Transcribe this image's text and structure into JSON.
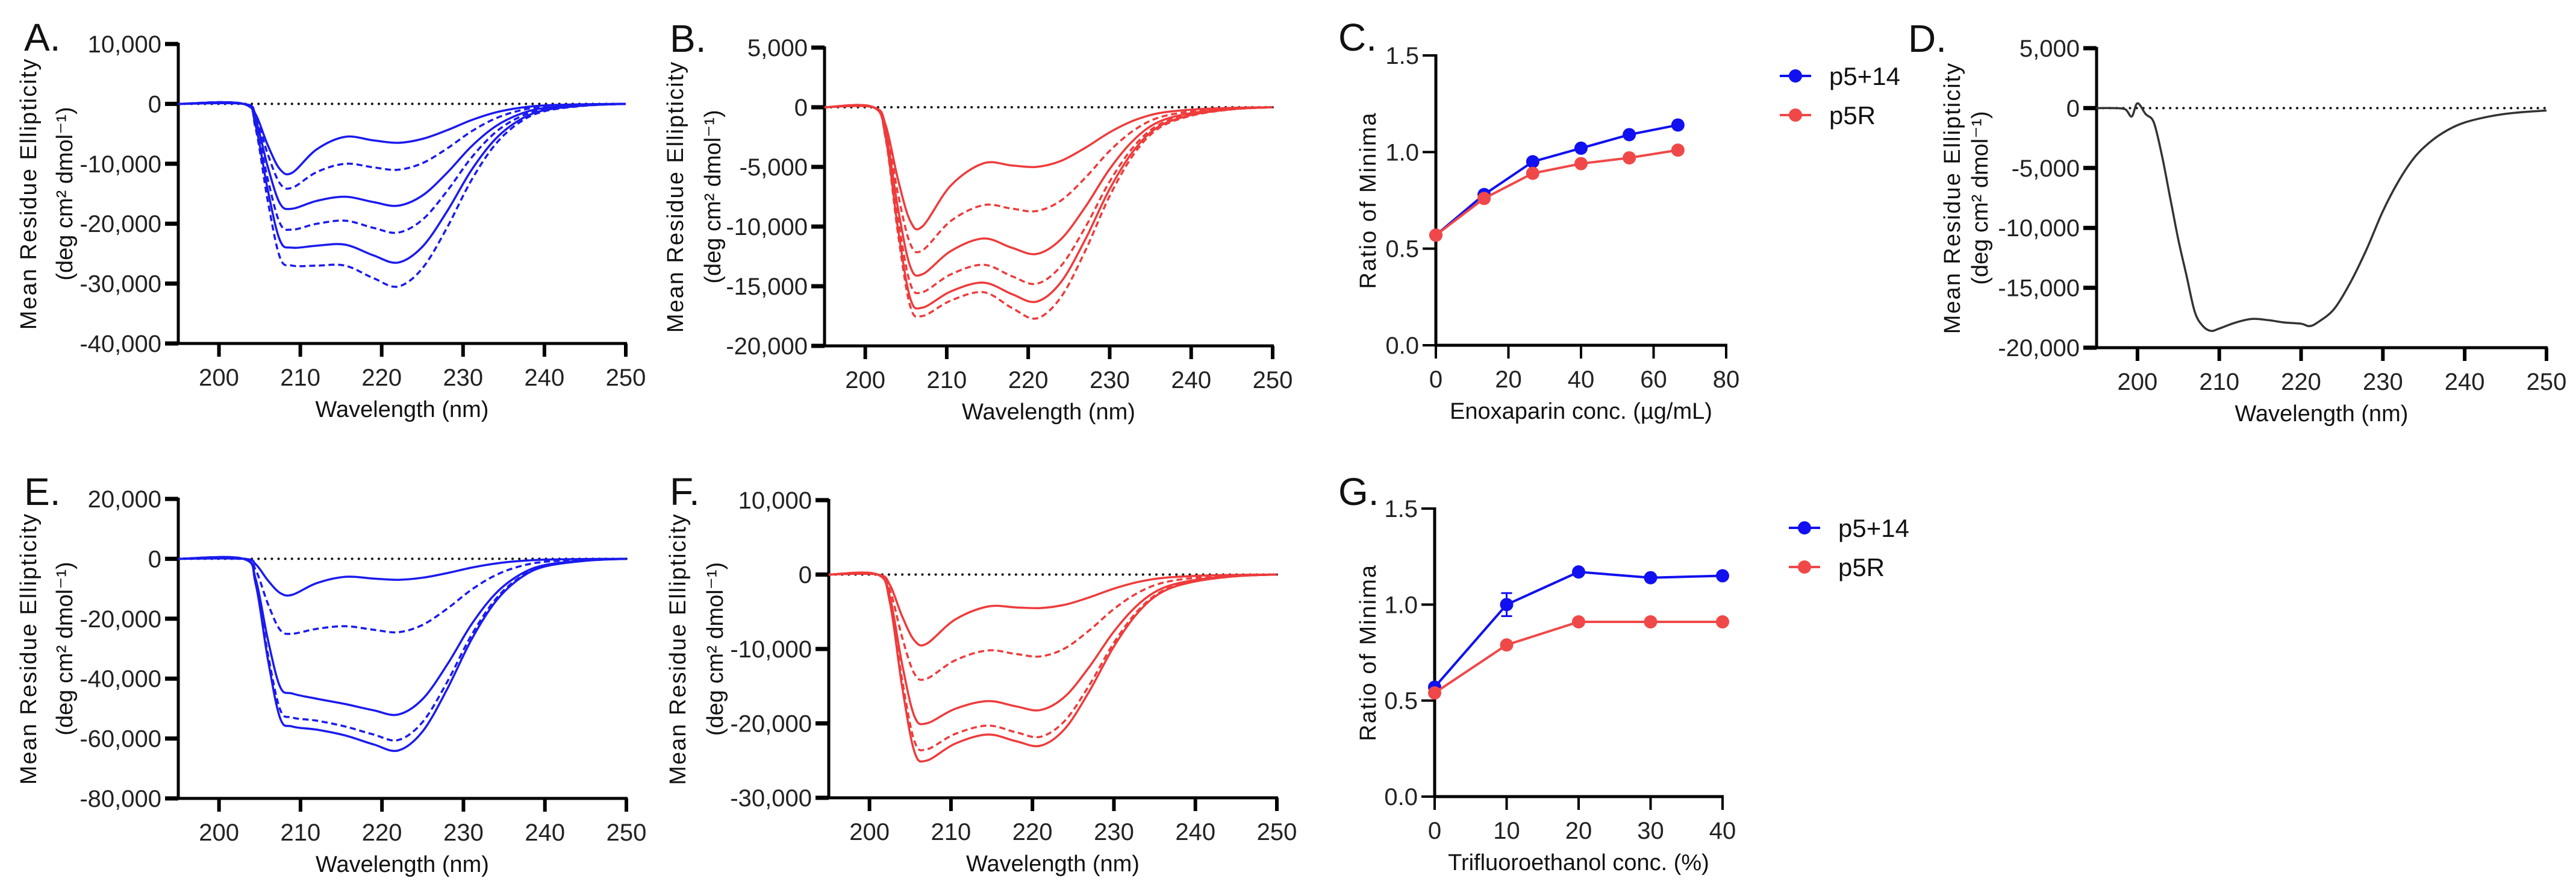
{
  "chart_data": [
    {
      "panel": "A.",
      "type": "line",
      "xlabel": "Wavelength (nm)",
      "ylabel": "Mean Residue Ellipticity",
      "ylabel_units": "(deg cm² dmol⁻¹)",
      "xlim": [
        195,
        250
      ],
      "ylim": [
        -40000,
        10000
      ],
      "xticks": [
        "200",
        "210",
        "220",
        "230",
        "240",
        "250"
      ],
      "yticks": [
        "10,000",
        "0",
        "-10,000",
        "-20,000",
        "-30,000",
        "-40,000"
      ],
      "zero_line": true,
      "color": "#1a1aee",
      "markers": false,
      "x": [
        195,
        203,
        204.5,
        206,
        207.5,
        209,
        212,
        215.5,
        219,
        222,
        225,
        228,
        231,
        234,
        237,
        240,
        245,
        250
      ],
      "series": [
        {
          "dashed": false,
          "values": [
            0,
            0,
            -1725,
            -6900,
            -10925,
            -11500,
            -7600,
            -5500,
            -6100,
            -6500,
            -5850,
            -4420,
            -2730,
            -1430,
            -650,
            -260,
            -65,
            0
          ]
        },
        {
          "dashed": true,
          "values": [
            0,
            0,
            -2100,
            -8400,
            -13300,
            -14000,
            -11400,
            -10000,
            -10600,
            -11000,
            -9900,
            -7480,
            -4620,
            -2420,
            -1100,
            -440,
            -110,
            0
          ]
        },
        {
          "dashed": false,
          "values": [
            0,
            0,
            -2625,
            -10500,
            -16625,
            -17500,
            -16200,
            -15500,
            -16400,
            -17000,
            -15300,
            -11560,
            -7140,
            -3740,
            -1700,
            -680,
            -170,
            0
          ]
        },
        {
          "dashed": true,
          "values": [
            0,
            0,
            -3150,
            -12600,
            -19950,
            -21000,
            -20025,
            -19500,
            -20700,
            -21500,
            -19350,
            -14620,
            -9030,
            -4730,
            -2150,
            -860,
            -215,
            0
          ]
        },
        {
          "dashed": false,
          "values": [
            0,
            0,
            -3600,
            -14400,
            -22800,
            -24000,
            -23675,
            -23500,
            -25300,
            -26500,
            -23850,
            -18020,
            -11130,
            -5830,
            -2650,
            -1060,
            -265,
            0
          ]
        },
        {
          "dashed": true,
          "values": [
            0,
            0,
            -4050,
            -16200,
            -25650,
            -27000,
            -27000,
            -27000,
            -29100,
            -30500,
            -27450,
            -20740,
            -12810,
            -6710,
            -3050,
            -1220,
            -305,
            0
          ]
        }
      ]
    },
    {
      "panel": "B.",
      "type": "line",
      "xlabel": "Wavelength (nm)",
      "ylabel": "Mean Residue Ellipticity",
      "ylabel_units": "(deg cm² dmol⁻¹)",
      "xlim": [
        195,
        250
      ],
      "ylim": [
        -20000,
        5000
      ],
      "xticks": [
        "200",
        "210",
        "220",
        "230",
        "240",
        "250"
      ],
      "yticks": [
        "5,000",
        "0",
        "-5,000",
        "-10,000",
        "-15,000",
        "-20,000"
      ],
      "zero_line": true,
      "color": "#ee3b3b",
      "markers": false,
      "x": [
        195,
        201,
        202.5,
        204,
        205.5,
        207,
        210.5,
        214.5,
        218,
        221,
        224,
        227,
        230,
        233,
        236,
        240,
        245,
        250
      ],
      "series": [
        {
          "dashed": false,
          "values": [
            0,
            0,
            -1500,
            -6000,
            -9500,
            -10000,
            -6555,
            -4700,
            -4880,
            -5000,
            -4500,
            -3400,
            -2100,
            -1100,
            -500,
            -200,
            -50,
            0
          ]
        },
        {
          "dashed": true,
          "values": [
            0,
            0,
            -1800,
            -7200,
            -11400,
            -12000,
            -9530,
            -8200,
            -8500,
            -8700,
            -7830,
            -5916,
            -3654,
            -1914,
            -870,
            -348,
            -87,
            0
          ]
        },
        {
          "dashed": false,
          "values": [
            0,
            0,
            -2100,
            -8400,
            -13300,
            -14000,
            -12050,
            -11000,
            -11780,
            -12300,
            -11070,
            -8364,
            -5166,
            -2706,
            -1230,
            -492,
            -123,
            0
          ]
        },
        {
          "dashed": true,
          "values": [
            0,
            0,
            -2325,
            -9300,
            -14725,
            -15500,
            -14005,
            -13200,
            -14160,
            -14800,
            -13320,
            -10064,
            -6216,
            -3256,
            -1480,
            -592,
            -148,
            0
          ]
        },
        {
          "dashed": false,
          "values": [
            0,
            0,
            -2520,
            -10080,
            -15960,
            -16800,
            -15435,
            -14700,
            -15660,
            -16300,
            -14670,
            -11084,
            -6846,
            -3586,
            -1630,
            -652,
            -163,
            0
          ]
        },
        {
          "dashed": true,
          "values": [
            0,
            0,
            -2625,
            -10500,
            -16625,
            -17500,
            -16200,
            -15500,
            -16820,
            -17700,
            -15930,
            -12036,
            -7434,
            -3894,
            -1770,
            -708,
            -177,
            0
          ]
        }
      ]
    },
    {
      "panel": "C.",
      "type": "line",
      "xlabel": "Enoxaparin conc. (µg/mL)",
      "ylabel": "Ratio of Minima",
      "ylabel_units": "",
      "xlim": [
        0,
        80
      ],
      "ylim": [
        0,
        1.5
      ],
      "xticks": [
        "0",
        "20",
        "40",
        "60",
        "80"
      ],
      "yticks": [
        "0.0",
        "0.5",
        "1.0",
        "1.5"
      ],
      "zero_line": false,
      "markers": true,
      "legend": [
        {
          "label": "p5+14",
          "color": "#1010f0"
        },
        {
          "label": "p5R",
          "color": "#f04848"
        }
      ],
      "x": [
        0,
        13.3,
        26.7,
        40,
        53.3,
        66.7
      ],
      "series": [
        {
          "name": "p5+14",
          "color": "#1010f0",
          "values": [
            0.57,
            0.78,
            0.95,
            1.02,
            1.09,
            1.14
          ],
          "errors": [
            0,
            0,
            0,
            0,
            0,
            0
          ]
        },
        {
          "name": "p5R",
          "color": "#f04848",
          "values": [
            0.57,
            0.76,
            0.89,
            0.94,
            0.97,
            1.01
          ],
          "errors": [
            0,
            0,
            0,
            0,
            0,
            0
          ]
        }
      ]
    },
    {
      "panel": "D.",
      "type": "line",
      "xlabel": "Wavelength (nm)",
      "ylabel": "Mean Residue Ellipticity",
      "ylabel_units": "(deg cm² dmol⁻¹)",
      "xlim": [
        195,
        250
      ],
      "ylim": [
        -20000,
        5000
      ],
      "xticks": [
        "200",
        "210",
        "220",
        "230",
        "240",
        "250"
      ],
      "yticks": [
        "5,000",
        "0",
        "-5,000",
        "-10,000",
        "-15,000",
        "-20,000"
      ],
      "zero_line": true,
      "color": "#333333",
      "markers": false,
      "x": [
        195,
        197,
        198.5,
        199.3,
        200,
        201,
        202,
        203,
        204,
        205,
        206,
        207,
        208,
        209,
        210,
        212,
        214,
        216,
        218,
        220,
        221,
        222,
        224,
        226,
        228,
        230,
        232,
        234,
        236,
        238,
        240,
        243,
        246,
        250
      ],
      "series": [
        {
          "dashed": false,
          "values": [
            0,
            0,
            -100,
            -700,
            400,
            -500,
            -1200,
            -4000,
            -7500,
            -11000,
            -14000,
            -17000,
            -18200,
            -18600,
            -18400,
            -17900,
            -17600,
            -17700,
            -17900,
            -18000,
            -18200,
            -17900,
            -16800,
            -14600,
            -11800,
            -8600,
            -6000,
            -4000,
            -2700,
            -1800,
            -1200,
            -700,
            -400,
            -200
          ]
        }
      ]
    },
    {
      "panel": "E.",
      "type": "line",
      "xlabel": "Wavelength (nm)",
      "ylabel": "Mean Residue Ellipticity",
      "ylabel_units": "(deg cm² dmol⁻¹)",
      "xlim": [
        195,
        250
      ],
      "ylim": [
        -80000,
        20000
      ],
      "xticks": [
        "200",
        "210",
        "220",
        "230",
        "240",
        "250"
      ],
      "yticks": [
        "20,000",
        "0",
        "-20,000",
        "-40,000",
        "-60,000",
        "-80,000"
      ],
      "zero_line": true,
      "color": "#1a1aee",
      "markers": false,
      "x": [
        195,
        203,
        204.5,
        206,
        207.5,
        209,
        212,
        215.5,
        219,
        222,
        225,
        228,
        231,
        234,
        237,
        240,
        245,
        250
      ],
      "series": [
        {
          "dashed": false,
          "values": [
            0,
            0,
            -1800,
            -7200,
            -11400,
            -12000,
            -8100,
            -6000,
            -6600,
            -7000,
            -6300,
            -4760,
            -2940,
            -1540,
            -700,
            -280,
            -70,
            0
          ]
        },
        {
          "dashed": true,
          "values": [
            0,
            0,
            -3750,
            -15000,
            -23750,
            -25000,
            -23375,
            -22500,
            -23700,
            -24500,
            -22050,
            -16660,
            -10290,
            -5390,
            -2450,
            -980,
            -245,
            0
          ]
        },
        {
          "dashed": false,
          "values": [
            0,
            0,
            -6750,
            -27000,
            -42750,
            -45000,
            -46725,
            -48500,
            -50600,
            -52000,
            -46800,
            -35360,
            -21840,
            -11440,
            -5200,
            -2080,
            -520,
            0
          ]
        },
        {
          "dashed": true,
          "values": [
            0,
            0,
            -7950,
            -31800,
            -50350,
            -53000,
            -54050,
            -56000,
            -58700,
            -60500,
            -54450,
            -41140,
            -25410,
            -13310,
            -6050,
            -2420,
            -605,
            0
          ]
        },
        {
          "dashed": false,
          "values": [
            0,
            0,
            -8400,
            -33600,
            -53200,
            -56000,
            -57050,
            -59000,
            -62000,
            -64000,
            -57600,
            -43520,
            -26880,
            -14080,
            -6400,
            -2560,
            -640,
            0
          ]
        }
      ]
    },
    {
      "panel": "F.",
      "type": "line",
      "xlabel": "Wavelength (nm)",
      "ylabel": "Mean Residue Ellipticity",
      "ylabel_units": "(deg cm² dmol⁻¹)",
      "xlim": [
        195,
        250
      ],
      "ylim": [
        -30000,
        10000
      ],
      "xticks": [
        "200",
        "210",
        "220",
        "230",
        "240",
        "250"
      ],
      "yticks": [
        "10,000",
        "0",
        "-10,000",
        "-20,000",
        "-30,000"
      ],
      "zero_line": true,
      "color": "#ee3b3b",
      "markers": false,
      "x": [
        195,
        201,
        202.5,
        204,
        205.5,
        207,
        210.5,
        214.5,
        218,
        221,
        224,
        227,
        230,
        233,
        236,
        240,
        245,
        250
      ],
      "series": [
        {
          "dashed": false,
          "values": [
            0,
            0,
            -1395,
            -5580,
            -8835,
            -9300,
            -6050,
            -4300,
            -4420,
            -4500,
            -4050,
            -3060,
            -1890,
            -990,
            -450,
            -180,
            -45,
            0
          ]
        },
        {
          "dashed": true,
          "values": [
            0,
            0,
            -2100,
            -8400,
            -13300,
            -14000,
            -11530,
            -10200,
            -10680,
            -11000,
            -9900,
            -7480,
            -4620,
            -2420,
            -1100,
            -440,
            -110,
            0
          ]
        },
        {
          "dashed": false,
          "values": [
            0,
            0,
            -3000,
            -12000,
            -19000,
            -20000,
            -18050,
            -17000,
            -17720,
            -18200,
            -16380,
            -12376,
            -7644,
            -4004,
            -1820,
            -728,
            -182,
            0
          ]
        },
        {
          "dashed": true,
          "values": [
            0,
            0,
            -3525,
            -14100,
            -22325,
            -23500,
            -21420,
            -20300,
            -21200,
            -21800,
            -19620,
            -14824,
            -9156,
            -4796,
            -2180,
            -872,
            -218,
            0
          ]
        },
        {
          "dashed": false,
          "values": [
            0,
            0,
            -3750,
            -15000,
            -23750,
            -25000,
            -22725,
            -21500,
            -22400,
            -23000,
            -20700,
            -15640,
            -9660,
            -5060,
            -2300,
            -920,
            -230,
            0
          ]
        }
      ]
    },
    {
      "panel": "G.",
      "type": "line",
      "xlabel": "Trifluoroethanol conc. (%)",
      "ylabel": "Ratio of Minima",
      "ylabel_units": "",
      "xlim": [
        0,
        40
      ],
      "ylim": [
        0,
        1.5
      ],
      "xticks": [
        "0",
        "10",
        "20",
        "30",
        "40"
      ],
      "yticks": [
        "0.0",
        "0.5",
        "1.0",
        "1.5"
      ],
      "zero_line": false,
      "markers": true,
      "legend": [
        {
          "label": "p5+14",
          "color": "#1010f0"
        },
        {
          "label": "p5R",
          "color": "#f04848"
        }
      ],
      "x": [
        0,
        10,
        20,
        30,
        40
      ],
      "series": [
        {
          "name": "p5+14",
          "color": "#1010f0",
          "values": [
            0.57,
            1.0,
            1.17,
            1.14,
            1.15
          ],
          "errors": [
            0,
            0.06,
            0,
            0,
            0
          ]
        },
        {
          "name": "p5R",
          "color": "#f04848",
          "values": [
            0.54,
            0.79,
            0.91,
            0.91,
            0.91
          ],
          "errors": [
            0,
            0,
            0,
            0,
            0
          ]
        }
      ]
    }
  ]
}
